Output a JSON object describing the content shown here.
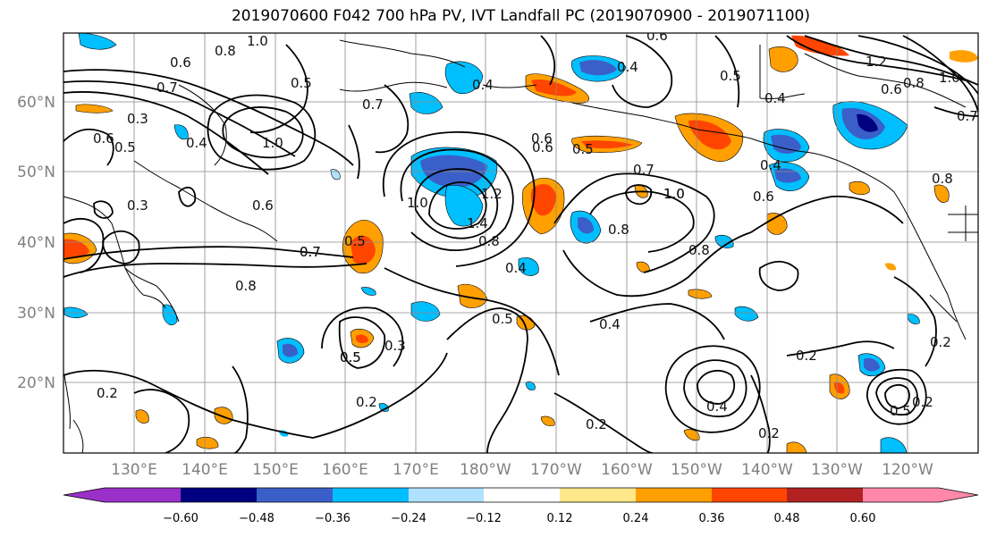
{
  "title": "2019070600 F042 700 hPa PV, IVT Landfall PC (2019070900 - 2019071100)",
  "colors": {
    "contour": "#000000",
    "grid": "#8a8a8a",
    "coast": "#000000"
  },
  "lat_labels": [
    "60°N",
    "50°N",
    "40°N",
    "30°N",
    "20°N"
  ],
  "lon_labels": [
    "130°E",
    "140°E",
    "150°E",
    "160°E",
    "170°E",
    "180°W",
    "170°W",
    "160°W",
    "150°W",
    "140°W",
    "130°W",
    "120°W"
  ],
  "colorbar": {
    "colors": [
      "#9b30c8",
      "#000080",
      "#3b5fc8",
      "#00bfff",
      "#b0e2ff",
      "#ffffff",
      "#ffe88a",
      "#ffa000",
      "#ff4500",
      "#b22222",
      "#ff88aa"
    ],
    "tick_labels": [
      "−0.60",
      "−0.48",
      "−0.36",
      "−0.24",
      "−0.12",
      "0.12",
      "0.24",
      "0.36",
      "0.48",
      "0.60"
    ]
  },
  "contour_labels": [
    "1.0",
    "0.8",
    "0.6",
    "0.7",
    "0.3",
    "0.6",
    "0.5",
    "0.4",
    "0.3",
    "1.0",
    "0.6",
    "0.7",
    "0.5",
    "0.8",
    "0.7",
    "0.4",
    "0.6",
    "0.5",
    "0.5",
    "0.4",
    "0.7",
    "1.0",
    "0.6",
    "0.4",
    "0.6",
    "0.5",
    "0.4",
    "1.2",
    "0.6",
    "0.8",
    "1.0",
    "0.7",
    "1.0",
    "1.2",
    "1.4",
    "0.8",
    "0.4",
    "0.5",
    "0.8",
    "0.6",
    "0.7",
    "1.0",
    "0.8",
    "0.4",
    "0.5",
    "0.3",
    "0.5",
    "0.2",
    "0.2",
    "0.2",
    "0.2",
    "0.4",
    "0.2",
    "0.2",
    "0.5",
    "0.2",
    "0.8"
  ]
}
